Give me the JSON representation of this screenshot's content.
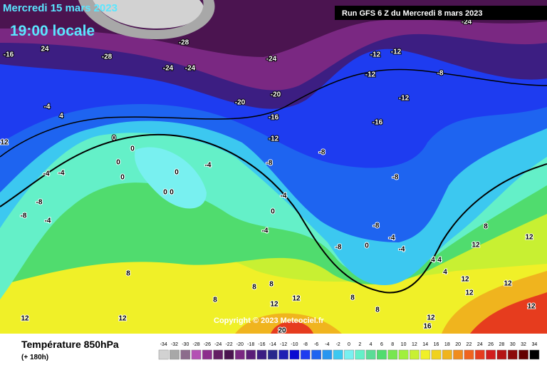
{
  "header": {
    "date": "Mercredi 15 mars 2023",
    "time": "19:00 locale",
    "run": "Run GFS 6 Z du Mercredi 8 mars 2023"
  },
  "footer": {
    "title": "Température 850hPa",
    "subtitle": "(+ 180h)",
    "copyright": "Copyright © 2023 Meteociel.fr"
  },
  "legend": {
    "values": [
      -34,
      -32,
      -30,
      -28,
      -26,
      -24,
      -22,
      -20,
      -18,
      -16,
      -14,
      -12,
      -10,
      -8,
      -6,
      -4,
      -2,
      0,
      2,
      4,
      6,
      8,
      10,
      12,
      14,
      16,
      18,
      20,
      22,
      24,
      26,
      28,
      30,
      32,
      34
    ],
    "colors": [
      "#d2d2d2",
      "#a8a8a8",
      "#8c6c8c",
      "#b450b4",
      "#8c2d8c",
      "#641e64",
      "#4b1450",
      "#7a2882",
      "#5a1e78",
      "#3c1e82",
      "#28288c",
      "#1e1eb4",
      "#0a0ad2",
      "#1e3cf0",
      "#1e64f0",
      "#2896f0",
      "#3cc8f0",
      "#78f0f0",
      "#64f0c8",
      "#5adc96",
      "#50dc6e",
      "#78e650",
      "#a0f03c",
      "#c8f032",
      "#f0f028",
      "#f0d21e",
      "#f0b41e",
      "#f08c1e",
      "#f0641e",
      "#e63c1e",
      "#d21e1e",
      "#b41414",
      "#8c0a0a",
      "#640000",
      "#000000"
    ]
  },
  "map_labels": [
    -16,
    24,
    -28,
    -28,
    -24,
    -24,
    -24,
    -24,
    -12,
    -12,
    -8,
    -12,
    -20,
    -20,
    -12,
    -16,
    -4,
    4,
    -16,
    -12,
    12,
    0,
    0,
    0,
    0,
    -4,
    -4,
    -8,
    -8,
    -4,
    0,
    0,
    0,
    -8,
    -4,
    0,
    -8,
    -8,
    -4,
    -4,
    -8,
    -4,
    0,
    -4,
    4,
    4,
    -8,
    12,
    12,
    8,
    4,
    8,
    8,
    8,
    8,
    12,
    12,
    8,
    8,
    12,
    12,
    12,
    12,
    12,
    12,
    20,
    16,
    12
  ]
}
